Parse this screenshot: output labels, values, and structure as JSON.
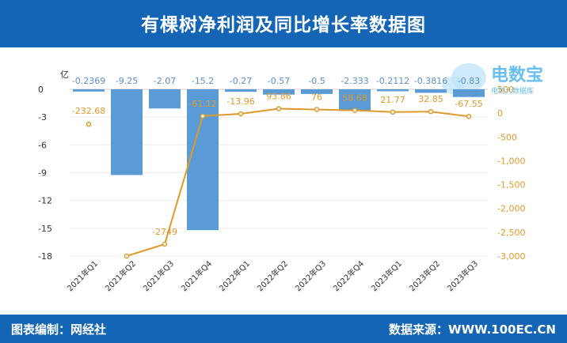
{
  "header": {
    "title": "有棵树净利润及同比增长率数据图"
  },
  "footer": {
    "left": "图表编制：网经社",
    "right": "数据来源：WWW.100EC.CN"
  },
  "watermark": {
    "text": "电数宝",
    "subtext": "电商大数据库",
    "color": "#4fb3f0"
  },
  "colors": {
    "header_bg": "#1565b7",
    "bar": "#5b9bd5",
    "line": "#e09a2b",
    "grid": "#eeeeee",
    "label_blue": "#5b8fc9"
  },
  "chart_data": {
    "type": "bar",
    "title": "有棵树净利润及同比增长率数据图",
    "categories": [
      "2021年Q1",
      "2021年Q2",
      "2021年Q3",
      "2021年Q4",
      "2022年Q1",
      "2022年Q2",
      "2022年Q3",
      "2022年Q4",
      "2023年Q1",
      "2023年Q2",
      "2023年Q3"
    ],
    "y_unit_label": "亿",
    "ylim": [
      -18,
      0
    ],
    "yticks": [
      0,
      -3,
      -6,
      -9,
      -12,
      -15,
      -18
    ],
    "ytick_labels": [
      "0",
      "-3",
      "-6",
      "-9",
      "-12",
      "-15",
      "-18"
    ],
    "y2lim": [
      -3000,
      500
    ],
    "y2ticks": [
      500,
      0,
      -500,
      -1000,
      -1500,
      -2000,
      -2500,
      -3000
    ],
    "y2tick_labels": [
      "500",
      "0",
      "-500",
      "-1,000",
      "-1,500",
      "-2,000",
      "-2,500",
      "-3,000"
    ],
    "grid": "horizontal",
    "series": [
      {
        "type": "bar",
        "axis": "left",
        "values": [
          -0.2369,
          -9.25,
          -2.07,
          -15.2,
          -0.27,
          -0.57,
          -0.5,
          -2.333,
          -0.2112,
          -0.3816,
          -0.83
        ],
        "labels": [
          "-0.2369",
          "-9.25",
          "-2.07",
          "-15.2",
          "-0.27",
          "-0.57",
          "-0.5",
          "-2.333",
          "-0.2112",
          "-0.3816",
          "-0.83"
        ]
      },
      {
        "type": "line",
        "axis": "right",
        "values": [
          -232.68,
          -3000,
          -2749,
          -61.12,
          -13.96,
          93.86,
          76,
          58.68,
          21.77,
          32.85,
          -67.55
        ],
        "labels": [
          "-232.68",
          "",
          "-2749",
          "-61.12",
          "-13.96",
          "93.86",
          "76",
          "58.68",
          "21.77",
          "32.85",
          "-67.55"
        ]
      }
    ]
  }
}
